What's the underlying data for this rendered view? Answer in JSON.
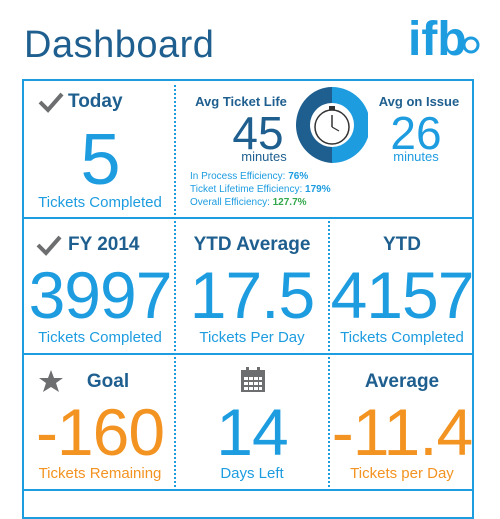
{
  "header": {
    "title": "Dashboard",
    "logo_text": "ifb"
  },
  "colors": {
    "accent": "#1d9ce0",
    "dark": "#1f5f8f",
    "orange": "#f39321",
    "green": "#32a84a"
  },
  "today": {
    "icon": "check-icon",
    "label": "Today",
    "value": "5",
    "caption": "Tickets Completed"
  },
  "ticket_life": {
    "avg_label": "Avg Ticket Life",
    "avg_value": "45",
    "avg_unit": "minutes",
    "issue_label": "Avg on Issue",
    "issue_value": "26",
    "issue_unit": "minutes",
    "icon": "stopwatch-icon",
    "efficiency": [
      {
        "label": "In Process Efficiency:",
        "value": "76%"
      },
      {
        "label": "Ticket Lifetime Efficiency:",
        "value": "179%"
      },
      {
        "label": "Overall Efficiency:",
        "value": "127.7%"
      }
    ]
  },
  "fy": {
    "icon": "check-icon",
    "label": "FY 2014",
    "value": "3997",
    "caption": "Tickets Completed"
  },
  "ytd_avg": {
    "label": "YTD Average",
    "value": "17.5",
    "caption": "Tickets Per Day"
  },
  "ytd": {
    "label": "YTD",
    "value": "4157",
    "caption": "Tickets Completed"
  },
  "goal": {
    "icon": "star-icon",
    "label": "Goal",
    "value": "-160",
    "caption": "Tickets Remaining"
  },
  "days": {
    "icon": "calendar-icon",
    "value": "14",
    "caption": "Days Left"
  },
  "average": {
    "label": "Average",
    "value": "-11.4",
    "caption": "Tickets per Day"
  }
}
